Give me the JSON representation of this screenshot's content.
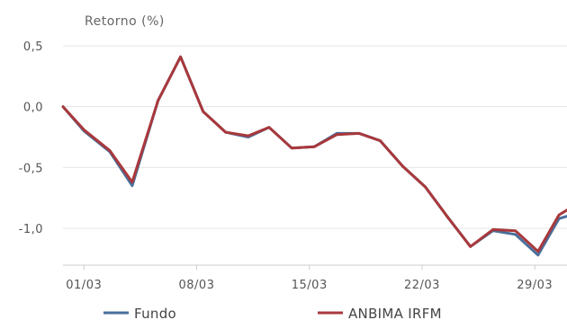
{
  "chart_data": {
    "type": "line",
    "ylabel": "Retorno (%)",
    "ylim": [
      -1.3,
      0.5
    ],
    "yticks": [
      0.5,
      0.0,
      -0.5,
      -1.0
    ],
    "ytick_labels": [
      "0,5",
      "0,0",
      "-0,5",
      "-1,0"
    ],
    "xticks": [
      "01/03",
      "08/03",
      "15/03",
      "22/03",
      "29/03"
    ],
    "x_tick_day": [
      1,
      8,
      15,
      22,
      29
    ],
    "xlim": [
      -0.3,
      31
    ],
    "grid": true,
    "legend_position": "bottom",
    "x": [
      -0.3,
      1,
      2.6,
      4,
      5.6,
      7,
      8.4,
      9.8,
      11.2,
      12.5,
      13.9,
      15.3,
      16.7,
      18.1,
      19.4,
      20.8,
      22.2,
      23.6,
      25,
      26.4,
      27.8,
      29.2,
      30.5,
      31
    ],
    "series": [
      {
        "name": "Fundo",
        "color": "#4a6f9b",
        "values": [
          0.0,
          -0.2,
          -0.37,
          -0.65,
          0.05,
          0.41,
          -0.04,
          -0.21,
          -0.25,
          -0.17,
          -0.34,
          -0.33,
          -0.22,
          -0.22,
          -0.28,
          -0.49,
          -0.66,
          -0.91,
          -1.15,
          -1.02,
          -1.05,
          -1.22,
          -0.92,
          -0.9
        ]
      },
      {
        "name": "ANBIMA IRFM",
        "color": "#a8383c",
        "values": [
          0.0,
          -0.19,
          -0.36,
          -0.62,
          0.05,
          0.41,
          -0.04,
          -0.21,
          -0.24,
          -0.17,
          -0.34,
          -0.33,
          -0.23,
          -0.22,
          -0.28,
          -0.49,
          -0.66,
          -0.91,
          -1.15,
          -1.01,
          -1.02,
          -1.19,
          -0.89,
          -0.85
        ]
      }
    ]
  }
}
